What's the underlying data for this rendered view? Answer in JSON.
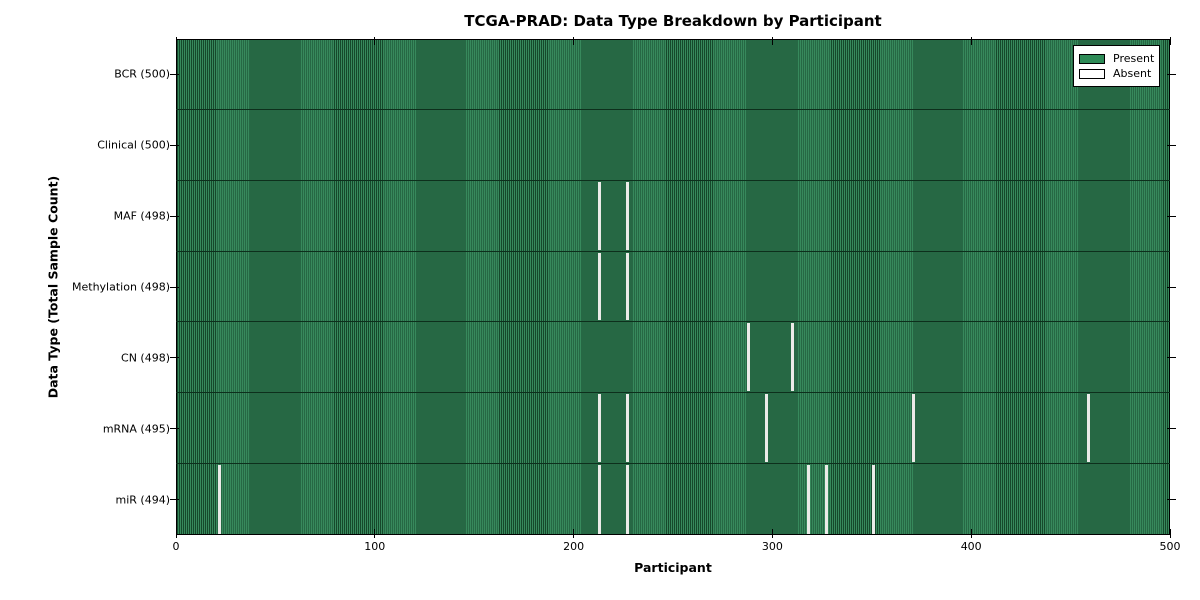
{
  "chart_data": {
    "type": "heatmap",
    "title": "TCGA-PRAD: Data Type Breakdown by Participant",
    "xlabel": "Participant",
    "ylabel": "Data Type (Total Sample Count)",
    "xlim": [
      0,
      500
    ],
    "x_ticks": [
      0,
      100,
      200,
      300,
      400,
      500
    ],
    "grid": false,
    "legend_position": "upper right",
    "legend": [
      {
        "label": "Present",
        "swatch": "present"
      },
      {
        "label": "Absent",
        "swatch": "absent"
      }
    ],
    "rows": [
      {
        "label": "BCR (500)",
        "data_type": "BCR",
        "total": 500,
        "absent_participants": []
      },
      {
        "label": "Clinical (500)",
        "data_type": "Clinical",
        "total": 500,
        "absent_participants": []
      },
      {
        "label": "MAF (498)",
        "data_type": "MAF",
        "total": 498,
        "absent_participants": [
          213,
          227
        ]
      },
      {
        "label": "Methylation (498)",
        "data_type": "Methylation",
        "total": 498,
        "absent_participants": [
          213,
          227
        ]
      },
      {
        "label": "CN (498)",
        "data_type": "CN",
        "total": 498,
        "absent_participants": [
          288,
          310
        ]
      },
      {
        "label": "mRNA (495)",
        "data_type": "mRNA",
        "total": 495,
        "absent_participants": [
          213,
          227,
          297,
          371,
          459
        ]
      },
      {
        "label": "miR (494)",
        "data_type": "miR",
        "total": 494,
        "absent_participants": [
          22,
          213,
          227,
          318,
          327,
          351
        ]
      }
    ],
    "colors": {
      "present": "#2e8b57",
      "present_stripe_light": "#37895c",
      "present_stripe_dark": "#16482b",
      "absent": "#ebebe8",
      "row_separator": "#0d2f1c",
      "axis": "#000000"
    }
  }
}
